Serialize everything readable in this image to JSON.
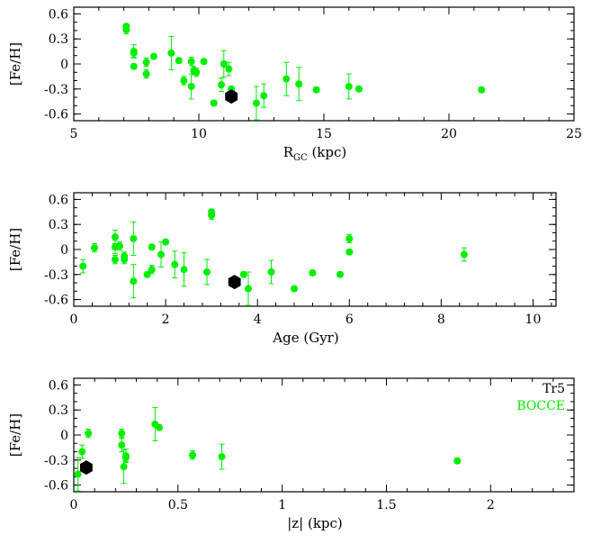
{
  "chart_data": [
    {
      "type": "scatter",
      "xlabel": "R",
      "xlabel_sub": "GC",
      "xlabel_unit": " (kpc)",
      "ylabel": "[Fe/H]",
      "xlim": [
        5,
        25
      ],
      "ylim": [
        -0.68,
        0.68
      ],
      "xticks": [
        5,
        10,
        15,
        20,
        25
      ],
      "xtick_labels": [
        "5",
        "10",
        "15",
        "20",
        "25"
      ],
      "yticks": [
        -0.6,
        -0.3,
        0,
        0.3,
        0.6
      ],
      "ytick_labels": [
        "-0.6",
        "-0.3",
        "0",
        "0.3",
        "0.6"
      ],
      "grid": false,
      "series": [
        {
          "name": "BOCCE",
          "color": "#00ee00",
          "marker": "circle",
          "points": [
            {
              "x": 7.1,
              "y": 0.45,
              "err": 0.03
            },
            {
              "x": 7.1,
              "y": 0.41,
              "err": 0.05
            },
            {
              "x": 7.4,
              "y": 0.15,
              "err": 0.08
            },
            {
              "x": 7.4,
              "y": 0.13,
              "err": 0.05
            },
            {
              "x": 7.4,
              "y": -0.03,
              "err": 0.03
            },
            {
              "x": 7.9,
              "y": 0.02,
              "err": 0.05
            },
            {
              "x": 7.9,
              "y": -0.12,
              "err": 0.05
            },
            {
              "x": 8.2,
              "y": 0.09,
              "err": 0.03
            },
            {
              "x": 8.9,
              "y": 0.13,
              "err": 0.2
            },
            {
              "x": 9.2,
              "y": 0.04,
              "err": 0.03
            },
            {
              "x": 9.4,
              "y": -0.2,
              "err": 0.05
            },
            {
              "x": 9.7,
              "y": 0.03,
              "err": 0.05
            },
            {
              "x": 9.7,
              "y": -0.27,
              "err": 0.15
            },
            {
              "x": 9.8,
              "y": -0.08,
              "err": 0.05
            },
            {
              "x": 9.9,
              "y": -0.1,
              "err": 0.05
            },
            {
              "x": 10.2,
              "y": 0.03,
              "err": 0.03
            },
            {
              "x": 10.6,
              "y": -0.47,
              "err": 0.03
            },
            {
              "x": 10.9,
              "y": -0.25,
              "err": 0.08
            },
            {
              "x": 11.0,
              "y": -0.0,
              "err": 0.16
            },
            {
              "x": 11.2,
              "y": -0.06,
              "err": 0.08
            },
            {
              "x": 11.3,
              "y": -0.3,
              "err": 0.03
            },
            {
              "x": 12.3,
              "y": -0.47,
              "err": 0.2
            },
            {
              "x": 12.6,
              "y": -0.38,
              "err": 0.14
            },
            {
              "x": 13.5,
              "y": -0.18,
              "err": 0.2
            },
            {
              "x": 14.0,
              "y": -0.24,
              "err": 0.2
            },
            {
              "x": 14.7,
              "y": -0.31,
              "err": 0.03
            },
            {
              "x": 16.0,
              "y": -0.27,
              "err": 0.15
            },
            {
              "x": 16.4,
              "y": -0.3,
              "err": 0.03
            },
            {
              "x": 21.3,
              "y": -0.31,
              "err": 0.03
            }
          ]
        },
        {
          "name": "Tr5",
          "color": "#000000",
          "marker": "hexagon",
          "points": [
            {
              "x": 11.3,
              "y": -0.39
            }
          ]
        }
      ]
    },
    {
      "type": "scatter",
      "xlabel": "Age (Gyr)",
      "ylabel": "[Fe/H]",
      "xlim": [
        0,
        10.5
      ],
      "ylim": [
        -0.68,
        0.68
      ],
      "xticks": [
        0,
        2,
        4,
        6,
        8,
        10
      ],
      "xtick_labels": [
        "0",
        "2",
        "4",
        "6",
        "8",
        "10"
      ],
      "yticks": [
        -0.6,
        -0.3,
        0,
        0.3,
        0.6
      ],
      "ytick_labels": [
        "-0.6",
        "-0.3",
        "0",
        "0.3",
        "0.6"
      ],
      "grid": false,
      "series": [
        {
          "name": "BOCCE",
          "color": "#00ee00",
          "marker": "circle",
          "points": [
            {
              "x": 0.2,
              "y": -0.2,
              "err": 0.08
            },
            {
              "x": 0.45,
              "y": 0.02,
              "err": 0.05
            },
            {
              "x": 0.9,
              "y": 0.15,
              "err": 0.08
            },
            {
              "x": 0.9,
              "y": 0.03,
              "err": 0.08
            },
            {
              "x": 0.9,
              "y": -0.12,
              "err": 0.05
            },
            {
              "x": 1.0,
              "y": 0.04,
              "err": 0.05
            },
            {
              "x": 1.1,
              "y": -0.08,
              "err": 0.05
            },
            {
              "x": 1.1,
              "y": -0.12,
              "err": 0.05
            },
            {
              "x": 1.3,
              "y": 0.13,
              "err": 0.2
            },
            {
              "x": 1.3,
              "y": -0.38,
              "err": 0.2
            },
            {
              "x": 1.6,
              "y": -0.3,
              "err": 0.03
            },
            {
              "x": 1.7,
              "y": 0.03,
              "err": 0.03
            },
            {
              "x": 1.7,
              "y": -0.24,
              "err": 0.05
            },
            {
              "x": 1.9,
              "y": -0.06,
              "err": 0.15
            },
            {
              "x": 2.0,
              "y": 0.09,
              "err": 0.03
            },
            {
              "x": 2.2,
              "y": -0.18,
              "err": 0.16
            },
            {
              "x": 2.4,
              "y": -0.24,
              "err": 0.2
            },
            {
              "x": 2.9,
              "y": -0.27,
              "err": 0.15
            },
            {
              "x": 3.0,
              "y": 0.45,
              "err": 0.03
            },
            {
              "x": 3.0,
              "y": 0.41,
              "err": 0.05
            },
            {
              "x": 3.7,
              "y": -0.3,
              "err": 0.03
            },
            {
              "x": 3.8,
              "y": -0.47,
              "err": 0.2
            },
            {
              "x": 4.3,
              "y": -0.27,
              "err": 0.14
            },
            {
              "x": 4.8,
              "y": -0.47,
              "err": 0.03
            },
            {
              "x": 5.2,
              "y": -0.28,
              "err": 0.03
            },
            {
              "x": 5.8,
              "y": -0.3,
              "err": 0.03
            },
            {
              "x": 6.0,
              "y": 0.13,
              "err": 0.05
            },
            {
              "x": 6.0,
              "y": -0.03,
              "err": 0.03
            },
            {
              "x": 8.5,
              "y": -0.06,
              "err": 0.08
            }
          ]
        },
        {
          "name": "Tr5",
          "color": "#000000",
          "marker": "hexagon",
          "points": [
            {
              "x": 3.5,
              "y": -0.39
            }
          ]
        }
      ]
    },
    {
      "type": "scatter",
      "xlabel": "|z| (kpc)",
      "ylabel": "[Fe/H]",
      "xlim": [
        0,
        2.4
      ],
      "ylim": [
        -0.68,
        0.68
      ],
      "xticks": [
        0,
        0.5,
        1,
        1.5,
        2
      ],
      "xtick_labels": [
        "0",
        "0.5",
        "1",
        "1.5",
        "2"
      ],
      "yticks": [
        -0.6,
        -0.3,
        0,
        0.3,
        0.6
      ],
      "ytick_labels": [
        "-0.6",
        "-0.3",
        "0",
        "0.3",
        "0.6"
      ],
      "grid": false,
      "legend": {
        "placement": "top-right",
        "entries": [
          {
            "label": "Tr5",
            "color": "#000000"
          },
          {
            "label": "BOCCE",
            "color": "#00ee00"
          }
        ]
      },
      "series": [
        {
          "name": "BOCCE",
          "color": "#00ee00",
          "marker": "circle",
          "points": [
            {
              "x": 0.02,
              "y": -0.47,
              "err": 0.2
            },
            {
              "x": 0.04,
              "y": -0.2,
              "err": 0.08
            },
            {
              "x": 0.07,
              "y": 0.02,
              "err": 0.05
            },
            {
              "x": 0.23,
              "y": 0.02,
              "err": 0.05
            },
            {
              "x": 0.23,
              "y": -0.12,
              "err": 0.08
            },
            {
              "x": 0.24,
              "y": -0.38,
              "err": 0.2
            },
            {
              "x": 0.25,
              "y": -0.25,
              "err": 0.08
            },
            {
              "x": 0.25,
              "y": -0.27,
              "err": 0.05
            },
            {
              "x": 0.39,
              "y": 0.13,
              "err": 0.2
            },
            {
              "x": 0.41,
              "y": 0.09,
              "err": 0.03
            },
            {
              "x": 0.57,
              "y": -0.24,
              "err": 0.05
            },
            {
              "x": 0.71,
              "y": -0.26,
              "err": 0.15
            },
            {
              "x": 1.84,
              "y": -0.31,
              "err": 0.03
            }
          ]
        },
        {
          "name": "Tr5",
          "color": "#000000",
          "marker": "hexagon",
          "points": [
            {
              "x": 0.06,
              "y": -0.39
            }
          ]
        }
      ]
    }
  ]
}
